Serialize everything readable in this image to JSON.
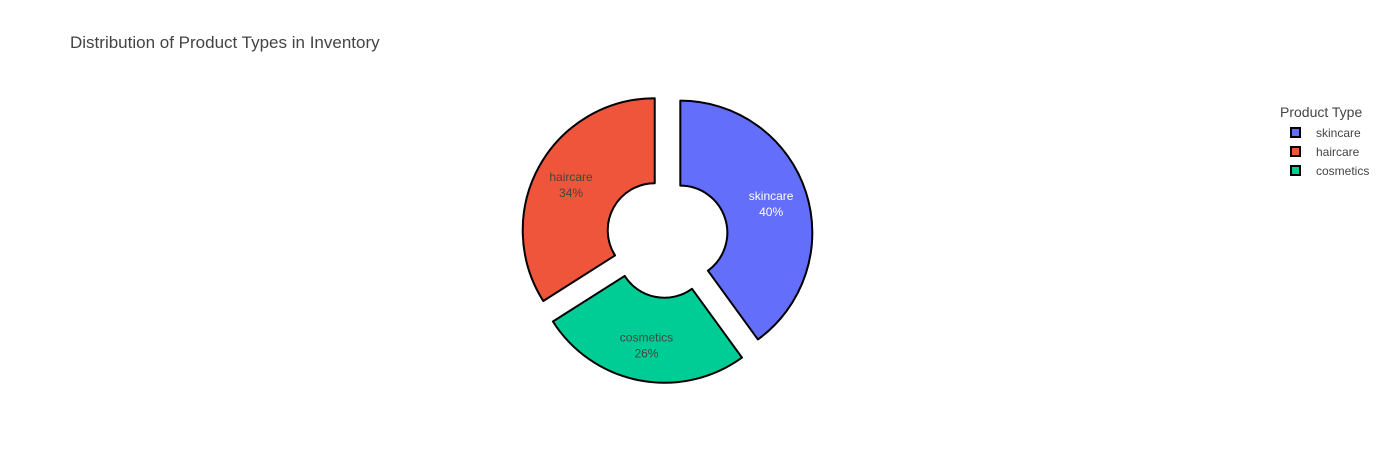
{
  "chart_data": {
    "type": "pie",
    "title": "Distribution of Product Types in Inventory",
    "hole": true,
    "slices": [
      {
        "label": "skincare",
        "value": 40,
        "percent_text": "40%",
        "color": "#636EFA",
        "text_color": "#ffffff"
      },
      {
        "label": "cosmetics",
        "value": 26,
        "percent_text": "26%",
        "color": "#00CC96",
        "text_color": "#444444"
      },
      {
        "label": "haircare",
        "value": 34,
        "percent_text": "34%",
        "color": "#EF553B",
        "text_color": "#444444"
      }
    ],
    "legend": {
      "title": "Product Type",
      "placement": "top-right",
      "entries": [
        {
          "label": "skincare",
          "color": "#636EFA"
        },
        {
          "label": "haircare",
          "color": "#EF553B"
        },
        {
          "label": "cosmetics",
          "color": "#00CC96"
        }
      ]
    }
  }
}
